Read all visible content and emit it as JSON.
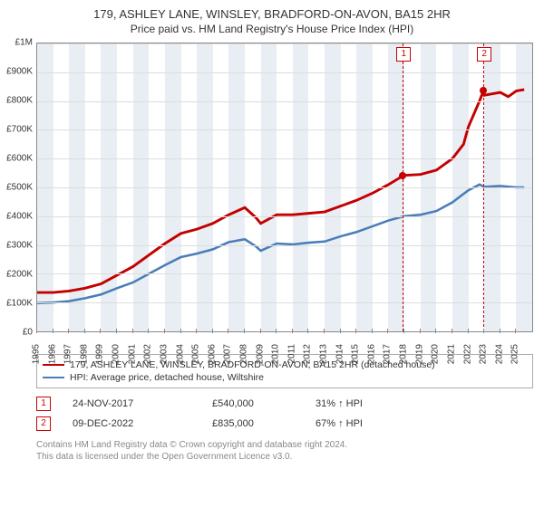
{
  "title": {
    "line1": "179, ASHLEY LANE, WINSLEY, BRADFORD-ON-AVON, BA15 2HR",
    "line2": "Price paid vs. HM Land Registry's House Price Index (HPI)"
  },
  "chart": {
    "type": "line",
    "background_color": "#ffffff",
    "grid_color": "#dddddd",
    "axis_color": "#888888",
    "band_color": "#e8eef4",
    "tick_fontsize": 10,
    "x_min_year": 1995,
    "x_max_year": 2026,
    "y_min": 0,
    "y_max": 1000000,
    "y_tick_step": 100000,
    "y_ticks": [
      "£0",
      "£100K",
      "£200K",
      "£300K",
      "£400K",
      "£500K",
      "£600K",
      "£700K",
      "£800K",
      "£900K",
      "£1M"
    ],
    "x_ticks": [
      1995,
      1996,
      1997,
      1998,
      1999,
      2000,
      2001,
      2002,
      2003,
      2004,
      2005,
      2006,
      2007,
      2008,
      2009,
      2010,
      2011,
      2012,
      2013,
      2014,
      2015,
      2016,
      2017,
      2018,
      2019,
      2020,
      2021,
      2022,
      2023,
      2024,
      2025
    ],
    "series": {
      "property": {
        "label": "179, ASHLEY LANE, WINSLEY, BRADFORD-ON-AVON, BA15 2HR (detached house)",
        "color": "#c40000",
        "line_width": 1.6,
        "data": [
          [
            1995,
            135000
          ],
          [
            1996,
            135000
          ],
          [
            1997,
            140000
          ],
          [
            1998,
            150000
          ],
          [
            1999,
            165000
          ],
          [
            2000,
            195000
          ],
          [
            2001,
            225000
          ],
          [
            2002,
            265000
          ],
          [
            2003,
            305000
          ],
          [
            2004,
            340000
          ],
          [
            2005,
            355000
          ],
          [
            2006,
            375000
          ],
          [
            2007,
            405000
          ],
          [
            2008,
            430000
          ],
          [
            2008.7,
            395000
          ],
          [
            2009,
            375000
          ],
          [
            2010,
            405000
          ],
          [
            2011,
            405000
          ],
          [
            2012,
            410000
          ],
          [
            2013,
            415000
          ],
          [
            2014,
            435000
          ],
          [
            2015,
            455000
          ],
          [
            2016,
            480000
          ],
          [
            2017,
            510000
          ],
          [
            2017.9,
            540000
          ],
          [
            2018,
            542000
          ],
          [
            2019,
            545000
          ],
          [
            2020,
            560000
          ],
          [
            2021,
            600000
          ],
          [
            2021.7,
            650000
          ],
          [
            2022,
            710000
          ],
          [
            2022.7,
            800000
          ],
          [
            2022.94,
            835000
          ],
          [
            2023,
            820000
          ],
          [
            2024,
            830000
          ],
          [
            2024.5,
            815000
          ],
          [
            2025,
            835000
          ],
          [
            2025.5,
            840000
          ]
        ]
      },
      "hpi": {
        "label": "HPI: Average price, detached house, Wiltshire",
        "color": "#4a7eb8",
        "line_width": 1.4,
        "data": [
          [
            1995,
            98000
          ],
          [
            1996,
            100000
          ],
          [
            1997,
            105000
          ],
          [
            1998,
            115000
          ],
          [
            1999,
            128000
          ],
          [
            2000,
            150000
          ],
          [
            2001,
            170000
          ],
          [
            2002,
            200000
          ],
          [
            2003,
            230000
          ],
          [
            2004,
            258000
          ],
          [
            2005,
            270000
          ],
          [
            2006,
            285000
          ],
          [
            2007,
            310000
          ],
          [
            2008,
            320000
          ],
          [
            2008.7,
            295000
          ],
          [
            2009,
            280000
          ],
          [
            2010,
            305000
          ],
          [
            2011,
            302000
          ],
          [
            2012,
            308000
          ],
          [
            2013,
            312000
          ],
          [
            2014,
            330000
          ],
          [
            2015,
            345000
          ],
          [
            2016,
            365000
          ],
          [
            2017,
            385000
          ],
          [
            2018,
            400000
          ],
          [
            2019,
            405000
          ],
          [
            2020,
            418000
          ],
          [
            2021,
            448000
          ],
          [
            2022,
            490000
          ],
          [
            2022.7,
            510000
          ],
          [
            2023,
            502000
          ],
          [
            2024,
            505000
          ],
          [
            2025,
            500000
          ],
          [
            2025.5,
            500000
          ]
        ]
      }
    },
    "markers": [
      {
        "idx": "1",
        "year": 2017.9,
        "value": 540000
      },
      {
        "idx": "2",
        "year": 2022.94,
        "value": 835000
      }
    ]
  },
  "legend": {
    "items": [
      {
        "color": "#c40000",
        "label": "179, ASHLEY LANE, WINSLEY, BRADFORD-ON-AVON, BA15 2HR (detached house)"
      },
      {
        "color": "#4a7eb8",
        "label": "HPI: Average price, detached house, Wiltshire"
      }
    ]
  },
  "sales": [
    {
      "idx": "1",
      "date": "24-NOV-2017",
      "price": "£540,000",
      "delta": "31% ↑ HPI"
    },
    {
      "idx": "2",
      "date": "09-DEC-2022",
      "price": "£835,000",
      "delta": "67% ↑ HPI"
    }
  ],
  "footer": {
    "line1": "Contains HM Land Registry data © Crown copyright and database right 2024.",
    "line2": "This data is licensed under the Open Government Licence v3.0."
  }
}
